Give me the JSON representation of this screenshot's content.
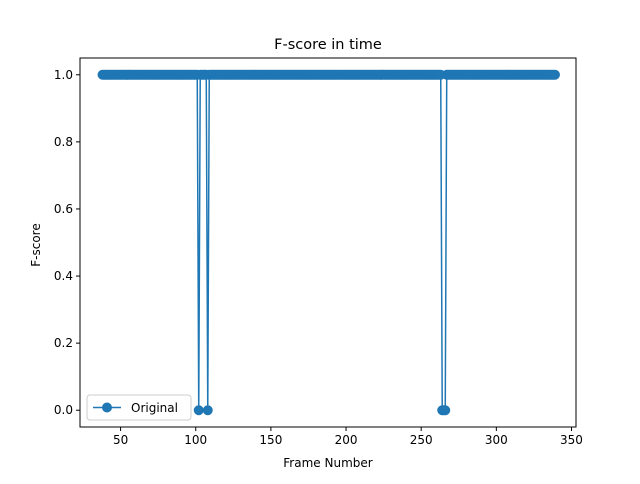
{
  "chart_data": {
    "type": "line",
    "title": "F-score in time",
    "xlabel": "Frame Number",
    "ylabel": "F-score",
    "xlim": [
      23,
      353
    ],
    "ylim": [
      -0.05,
      1.05
    ],
    "xticks": [
      50,
      100,
      150,
      200,
      250,
      300,
      350
    ],
    "yticks": [
      0.0,
      0.2,
      0.4,
      0.6,
      0.8,
      1.0
    ],
    "ytick_labels": [
      "0.0",
      "0.2",
      "0.4",
      "0.6",
      "0.8",
      "1.0"
    ],
    "grid": false,
    "legend": {
      "position": "lower-left",
      "entries": [
        "Original"
      ]
    },
    "series": [
      {
        "name": "Original",
        "color": "#1f77b4",
        "marker": "circle",
        "x_range": [
          38,
          339
        ],
        "default_y": 1.0,
        "overrides": [
          {
            "x": 102,
            "y": 0.0
          },
          {
            "x": 108,
            "y": 0.0
          },
          {
            "x": 264,
            "y": 0.0
          },
          {
            "x": 265,
            "y": 0.0
          },
          {
            "x": 266,
            "y": 0.0
          }
        ]
      }
    ]
  }
}
